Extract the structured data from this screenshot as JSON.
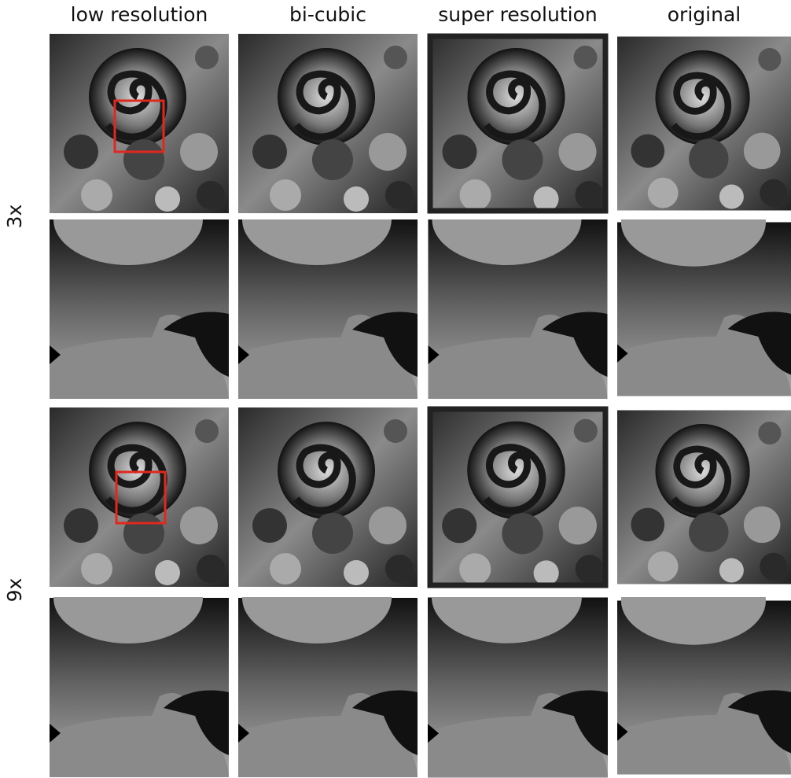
{
  "columns": [
    "low resolution",
    "bi-cubic",
    "super resolution",
    "original"
  ],
  "rows": [
    "3x",
    "9x"
  ]
}
